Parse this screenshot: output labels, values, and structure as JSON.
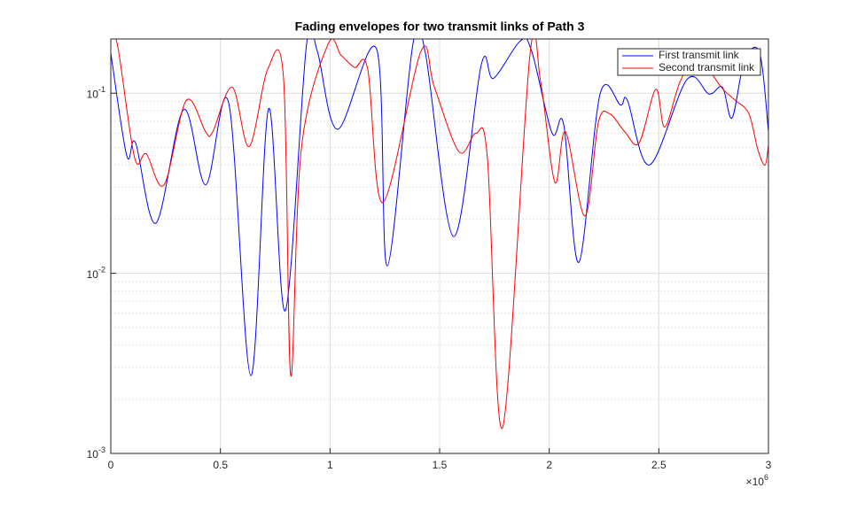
{
  "chart_data": {
    "type": "line",
    "title": "Fading envelopes for two transmit links of Path 3",
    "x_multiplier": "×10^6",
    "xlim": [
      0,
      3000000
    ],
    "xticks": [
      {
        "value": 0,
        "label": "0"
      },
      {
        "value": 500000,
        "label": "0.5"
      },
      {
        "value": 1000000,
        "label": "1"
      },
      {
        "value": 1500000,
        "label": "1.5"
      },
      {
        "value": 2000000,
        "label": "2"
      },
      {
        "value": 2500000,
        "label": "2.5"
      },
      {
        "value": 3000000,
        "label": "3"
      }
    ],
    "ylim": [
      0.001,
      0.2
    ],
    "yticks": [
      {
        "value": 0.001,
        "label": "10^-3"
      },
      {
        "value": 0.01,
        "label": "10^-2"
      },
      {
        "value": 0.1,
        "label": "10^-1"
      }
    ],
    "log_y": true,
    "grid": true,
    "minor_grid": true,
    "legend": "upper right",
    "series": [
      {
        "name": "First transmit link",
        "color": "#0000ff",
        "x": [
          0,
          72800,
          113000,
          206000,
          332000,
          433000,
          538000,
          639000,
          720000,
          796000,
          893000,
          942000,
          1035000,
          1213000,
          1261000,
          1378000,
          1435000,
          1564000,
          1690000,
          1746000,
          1868000,
          1920000,
          2013000,
          2066000,
          2135000,
          2232000,
          2325000,
          2357000,
          2458000,
          2628000,
          2729000,
          2790000,
          2834000,
          2891000,
          2960000,
          3000000
        ],
        "values": [
          0.167,
          0.045,
          0.053,
          0.019,
          0.081,
          0.031,
          0.088,
          0.0027,
          0.082,
          0.0062,
          0.187,
          0.171,
          0.063,
          0.175,
          0.011,
          0.187,
          0.167,
          0.016,
          0.144,
          0.121,
          0.195,
          0.171,
          0.06,
          0.067,
          0.0115,
          0.099,
          0.086,
          0.091,
          0.04,
          0.119,
          0.099,
          0.108,
          0.073,
          0.152,
          0.167,
          0.061
        ]
      },
      {
        "name": "Second transmit link",
        "color": "#ff0000",
        "x": [
          0,
          32000,
          109000,
          162000,
          243000,
          344000,
          433000,
          465000,
          554000,
          631000,
          716000,
          788000,
          821000,
          869000,
          991000,
          1051000,
          1112000,
          1172000,
          1241000,
          1415000,
          1476000,
          1589000,
          1666000,
          1718000,
          1787000,
          1912000,
          1961000,
          2026000,
          2074000,
          2163000,
          2224000,
          2276000,
          2345000,
          2410000,
          2486000,
          2527000,
          2596000,
          2681000,
          2729000,
          2790000,
          2850000,
          2911000,
          2951000,
          2984000,
          3000000
        ],
        "values": [
          0.205,
          0.181,
          0.0436,
          0.046,
          0.031,
          0.091,
          0.061,
          0.061,
          0.108,
          0.0506,
          0.136,
          0.121,
          0.0027,
          0.0489,
          0.187,
          0.162,
          0.139,
          0.136,
          0.0247,
          0.171,
          0.108,
          0.0472,
          0.06,
          0.0436,
          0.00139,
          0.163,
          0.115,
          0.032,
          0.061,
          0.0208,
          0.0687,
          0.0769,
          0.061,
          0.053,
          0.105,
          0.0649,
          0.115,
          0.171,
          0.136,
          0.106,
          0.091,
          0.0769,
          0.0489,
          0.0398,
          0.0517
        ]
      }
    ]
  }
}
